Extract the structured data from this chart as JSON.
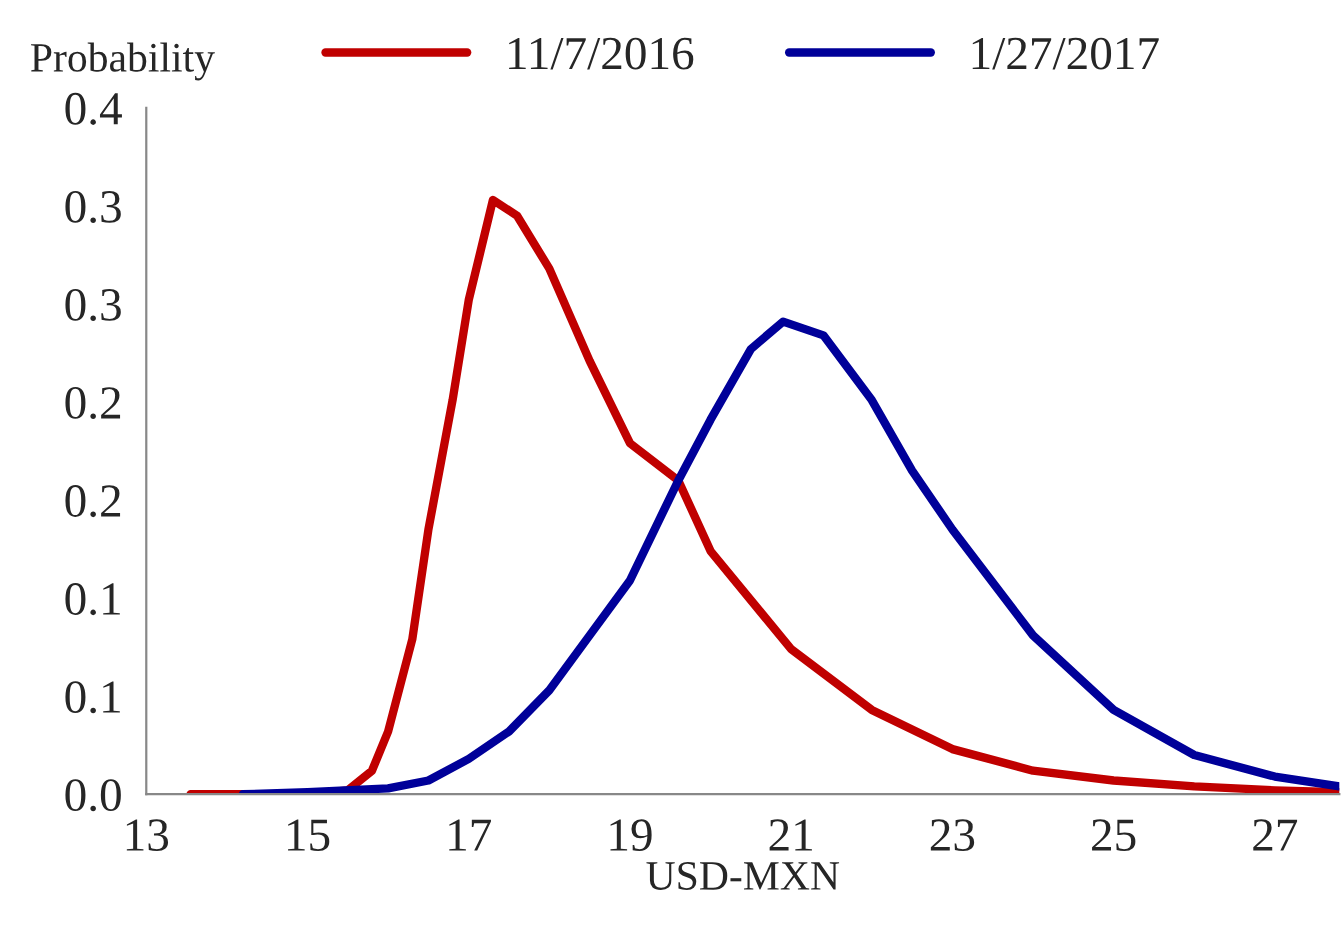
{
  "chart_data": {
    "type": "line",
    "xlabel": "USD-MXN",
    "ylabel": "Probability",
    "legend": "top",
    "grid": false,
    "marker": "none",
    "line_style": "solid",
    "xlim": [
      13,
      27.8
    ],
    "xticks": [
      13,
      15,
      17,
      19,
      21,
      23,
      25,
      27
    ],
    "ylim": [
      0,
      0.35
    ],
    "yticks": [
      {
        "value": 0,
        "label": "0.0"
      },
      {
        "value": 0.05,
        "label": "0.1"
      },
      {
        "value": 0.1,
        "label": "0.1"
      },
      {
        "value": 0.15,
        "label": "0.2"
      },
      {
        "value": 0.2,
        "label": "0.2"
      },
      {
        "value": 0.25,
        "label": "0.3"
      },
      {
        "value": 0.3,
        "label": "0.3"
      },
      {
        "value": 0.35,
        "label": "0.4"
      }
    ],
    "series": [
      {
        "name": "11/7/2016",
        "color": "#c00000",
        "x": [
          13.55,
          15,
          15.5,
          15.8,
          16,
          16.3,
          16.5,
          16.8,
          17,
          17.3,
          17.6,
          18,
          18.5,
          19,
          19.6,
          20,
          21,
          22,
          23,
          24,
          25,
          26,
          27,
          27.8
        ],
        "values": [
          0,
          0,
          0.002,
          0.012,
          0.032,
          0.079,
          0.135,
          0.201,
          0.252,
          0.303,
          0.295,
          0.268,
          0.221,
          0.179,
          0.16,
          0.124,
          0.074,
          0.043,
          0.023,
          0.012,
          0.007,
          0.004,
          0.002,
          0.001
        ]
      },
      {
        "name": "1/27/2017",
        "color": "#000099",
        "x": [
          14.2,
          15,
          16,
          16.5,
          17,
          17.5,
          18,
          18.5,
          19,
          19.6,
          20,
          20.5,
          20.9,
          21.4,
          22,
          22.5,
          23,
          24,
          25,
          26,
          27,
          27.8
        ],
        "values": [
          0,
          0.001,
          0.003,
          0.007,
          0.018,
          0.032,
          0.053,
          0.081,
          0.109,
          0.16,
          0.191,
          0.227,
          0.241,
          0.234,
          0.201,
          0.165,
          0.135,
          0.081,
          0.043,
          0.02,
          0.009,
          0.004
        ]
      }
    ]
  }
}
